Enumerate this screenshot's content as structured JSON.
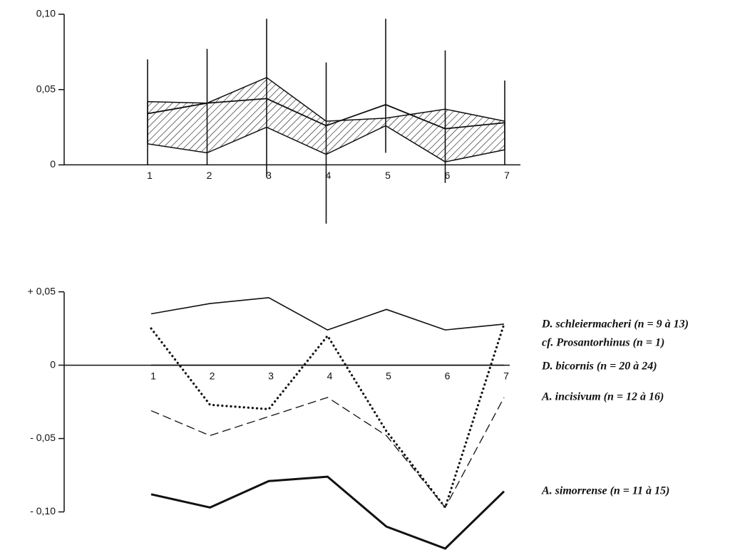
{
  "chart_data": [
    {
      "type": "band",
      "categories": [
        "1",
        "2",
        "3",
        "4",
        "5",
        "6",
        "7"
      ],
      "mean": [
        0.034,
        0.041,
        0.044,
        0.026,
        0.04,
        0.024,
        0.028
      ],
      "band_high": [
        0.042,
        0.041,
        0.058,
        0.029,
        0.031,
        0.037,
        0.029
      ],
      "band_low": [
        0.014,
        0.008,
        0.025,
        0.007,
        0.026,
        0.002,
        0.01
      ],
      "range_high": [
        0.07,
        0.077,
        0.097,
        0.068,
        0.097,
        0.076,
        0.056
      ],
      "range_low": [
        0.0,
        0.0,
        -0.008,
        -0.039,
        0.008,
        -0.012,
        0.0
      ],
      "color": "#111111",
      "ylim": [
        -0.04,
        0.1
      ],
      "yticks": [
        0,
        {
          "value": 0.05,
          "label": "0,05"
        },
        {
          "value": 0.1,
          "label": "0,10"
        }
      ]
    },
    {
      "type": "line",
      "categories": [
        "1",
        "2",
        "3",
        "4",
        "5",
        "6",
        "7"
      ],
      "series": [
        {
          "name": "D. schleiermacheri (n = 9 à 13)",
          "style": "solid",
          "color": "#111111",
          "values": [
            0.035,
            0.042,
            0.046,
            0.024,
            0.038,
            0.024,
            0.028
          ]
        },
        {
          "name": "cf. Prosantorhinus (n = 1)",
          "style": "dotted",
          "color": "#111111",
          "values": [
            0.025,
            -0.027,
            -0.03,
            0.02,
            -0.045,
            -0.097,
            0.028
          ]
        },
        {
          "name": "D. bicornis (n = 20 à 24)",
          "style": "solid",
          "color": "#111111",
          "values": [
            0,
            0,
            0,
            0,
            0,
            0,
            0
          ]
        },
        {
          "name": "A. incisivum (n = 12 à 16)",
          "style": "dashed",
          "color": "#111111",
          "values": [
            -0.031,
            -0.048,
            -0.035,
            -0.022,
            -0.048,
            -0.097,
            -0.022
          ]
        },
        {
          "name": "A. simorrense (n = 11 à 15)",
          "style": "thick",
          "color": "#111111",
          "values": [
            -0.088,
            -0.097,
            -0.079,
            -0.076,
            -0.11,
            -0.125,
            -0.086
          ]
        }
      ],
      "ylim": [
        -0.125,
        0.06
      ],
      "yticks": [
        {
          "value": 0.05,
          "label": "+ 0,05"
        },
        0,
        {
          "value": -0.05,
          "label": "- 0,05"
        },
        {
          "value": -0.1,
          "label": "- 0,10"
        }
      ]
    }
  ]
}
